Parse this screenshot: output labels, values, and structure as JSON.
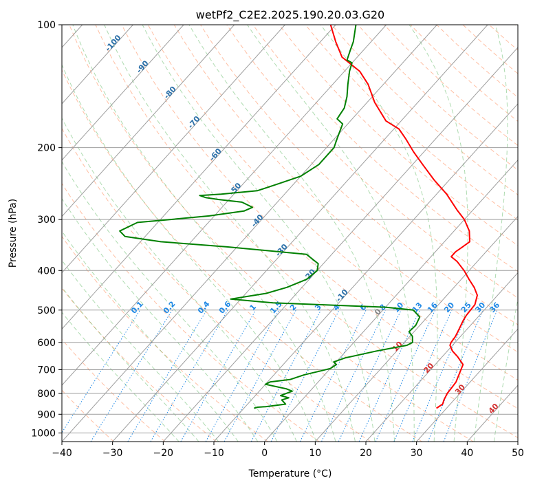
{
  "chart_data": {
    "type": "line",
    "title": "wetPf2_C2E2.2025.190.20.03.G20",
    "xlabel": "Temperature (°C)",
    "ylabel": "Pressure (hPa)",
    "xlim": [
      -40,
      50
    ],
    "ylim": [
      1050,
      100
    ],
    "y_scale": "log",
    "skew": true,
    "grid": true,
    "x_ticks": [
      -40,
      -30,
      -20,
      -10,
      0,
      10,
      20,
      30,
      40,
      50
    ],
    "y_ticks": [
      100,
      200,
      300,
      400,
      500,
      600,
      700,
      800,
      900,
      1000
    ],
    "colors": {
      "temperature": "#ff0000",
      "dewpoint": "#008000",
      "isotherm": "#9e9e9e",
      "dry_adiabat": "#ff9466",
      "moist_adiabat": "#4caf50",
      "mixing_ratio": "#1e88e5",
      "isotherm_label": "#d32f2f",
      "moist_label": "#2a6fa8",
      "mixing_label": "#1e88e5",
      "zero_label": "#808080"
    },
    "series": [
      {
        "key": "temperature",
        "points": [
          [
            28.0,
            870
          ],
          [
            28.5,
            850
          ],
          [
            28.0,
            830
          ],
          [
            27.5,
            800
          ],
          [
            27.4,
            780
          ],
          [
            27.2,
            750
          ],
          [
            26.0,
            700
          ],
          [
            25.5,
            680
          ],
          [
            23.0,
            650
          ],
          [
            21.0,
            630
          ],
          [
            19.5,
            610
          ],
          [
            19.2,
            600
          ],
          [
            19.0,
            580
          ],
          [
            18.5,
            560
          ],
          [
            17.7,
            530
          ],
          [
            17.4,
            515
          ],
          [
            17.3,
            500
          ],
          [
            17.2,
            485
          ],
          [
            16.0,
            460
          ],
          [
            14.0,
            440
          ],
          [
            11.5,
            420
          ],
          [
            9.0,
            400
          ],
          [
            6.0,
            380
          ],
          [
            4.0,
            370
          ],
          [
            4.0,
            360
          ],
          [
            4.5,
            350
          ],
          [
            5.0,
            340
          ],
          [
            3.0,
            320
          ],
          [
            0.0,
            300
          ],
          [
            -3.0,
            285
          ],
          [
            -8.0,
            260
          ],
          [
            -13.0,
            240
          ],
          [
            -18.0,
            220
          ],
          [
            -22.0,
            205
          ],
          [
            -26.0,
            190
          ],
          [
            -29.0,
            180
          ],
          [
            -33.0,
            172
          ],
          [
            -38.5,
            155
          ],
          [
            -43.0,
            140
          ],
          [
            -47.0,
            130
          ],
          [
            -53.0,
            120
          ],
          [
            -57.0,
            110
          ],
          [
            -61.0,
            100
          ]
        ]
      },
      {
        "key": "dewpoint",
        "points": [
          [
            -8.0,
            870
          ],
          [
            -7.5,
            865
          ],
          [
            -6.0,
            862
          ],
          [
            -4.0,
            855
          ],
          [
            -2.5,
            850
          ],
          [
            -4.0,
            830
          ],
          [
            -3.0,
            820
          ],
          [
            -5.0,
            810
          ],
          [
            -3.5,
            790
          ],
          [
            -5.0,
            780
          ],
          [
            -10.0,
            760
          ],
          [
            -9.5,
            750
          ],
          [
            -6.0,
            740
          ],
          [
            -4.0,
            720
          ],
          [
            -1.5,
            705
          ],
          [
            0.0,
            695
          ],
          [
            0.5,
            680
          ],
          [
            -0.5,
            670
          ],
          [
            1.0,
            655
          ],
          [
            6.0,
            630
          ],
          [
            11.0,
            610
          ],
          [
            11.6,
            600
          ],
          [
            10.5,
            580
          ],
          [
            9.0,
            565
          ],
          [
            9.2,
            545
          ],
          [
            8.5,
            520
          ],
          [
            6.0,
            500
          ],
          [
            0.0,
            492
          ],
          [
            -23.0,
            480
          ],
          [
            -32.0,
            470
          ],
          [
            -26.0,
            455
          ],
          [
            -23.0,
            440
          ],
          [
            -20.5,
            420
          ],
          [
            -20.0,
            400
          ],
          [
            -21.0,
            385
          ],
          [
            -25.0,
            365
          ],
          [
            -42.0,
            350
          ],
          [
            -56.0,
            340
          ],
          [
            -64.0,
            330
          ],
          [
            -66.0,
            320
          ],
          [
            -64.0,
            305
          ],
          [
            -58.0,
            300
          ],
          [
            -51.0,
            294
          ],
          [
            -45.0,
            286
          ],
          [
            -44.0,
            280
          ],
          [
            -47.0,
            272
          ],
          [
            -52.0,
            268
          ],
          [
            -55.0,
            265
          ],
          [
            -56.5,
            262
          ],
          [
            -52.5,
            260
          ],
          [
            -46.0,
            255
          ],
          [
            -43.0,
            245
          ],
          [
            -40.0,
            235
          ],
          [
            -38.5,
            220
          ],
          [
            -38.5,
            200
          ],
          [
            -39.5,
            190
          ],
          [
            -41.0,
            175
          ],
          [
            -43.0,
            170
          ],
          [
            -43.5,
            160
          ],
          [
            -45.0,
            150
          ],
          [
            -47.0,
            140
          ],
          [
            -49.0,
            130
          ],
          [
            -50.0,
            124
          ],
          [
            -51.5,
            122
          ],
          [
            -52.5,
            116
          ],
          [
            -53.5,
            110
          ],
          [
            -56.0,
            100
          ]
        ]
      }
    ],
    "isotherm_labels": [
      "10",
      "20",
      "30",
      "40"
    ],
    "moist_adiabat_labels": [
      "-100",
      "-90",
      "-80",
      "-70",
      "-60",
      "-50",
      "-40",
      "-30",
      "-20",
      "-10",
      "0"
    ],
    "mixing_ratio_labels": [
      "0.1",
      "0.2",
      "0.4",
      "0.6",
      "1",
      "1.5",
      "2",
      "3",
      "4",
      "6",
      "8",
      "10",
      "13",
      "16",
      "20",
      "25",
      "30",
      "36"
    ]
  }
}
